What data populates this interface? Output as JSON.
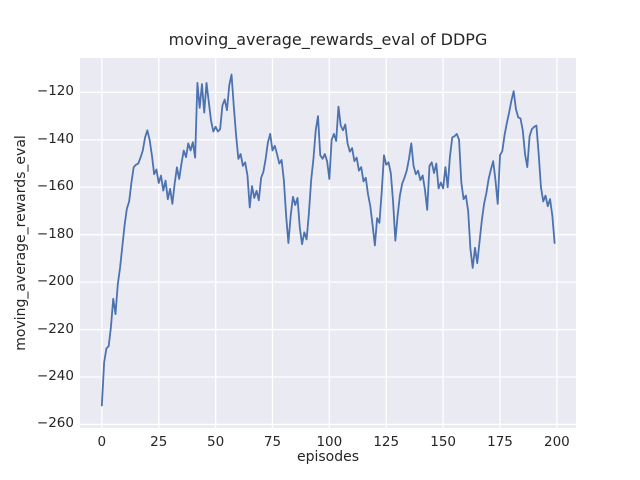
{
  "figure": {
    "title": "moving_average_rewards_eval of DDPG",
    "xlabel": "episodes",
    "ylabel": "moving_average_rewards_eval",
    "background_color": "#ffffff",
    "plot_background_color": "#eaeaf2",
    "grid_color": "#ffffff",
    "text_color": "#262626"
  },
  "chart_data": {
    "type": "line",
    "title": "moving_average_rewards_eval of DDPG",
    "xlabel": "episodes",
    "ylabel": "moving_average_rewards_eval",
    "grid": true,
    "legend": false,
    "x_ticks": [
      0,
      25,
      50,
      75,
      100,
      125,
      150,
      175,
      200
    ],
    "y_ticks": [
      -120,
      -140,
      -160,
      -180,
      -200,
      -220,
      -240,
      -260
    ],
    "xlim": [
      -9.6,
      208.4
    ],
    "ylim": [
      -261.5,
      -105.5
    ],
    "series": [
      {
        "name": "moving_average_rewards_eval",
        "color": "#4c72b0",
        "line_width": 1.8,
        "x_start": 0,
        "x_step": 1,
        "values": [
          -252,
          -234,
          -228,
          -227,
          -219,
          -207,
          -213.5,
          -201,
          -194,
          -185,
          -176,
          -169,
          -166,
          -158,
          -151.5,
          -150.5,
          -150,
          -147.5,
          -144.5,
          -139,
          -136,
          -140,
          -146.5,
          -154.5,
          -152.5,
          -158.2,
          -155.1,
          -161.4,
          -157.2,
          -165,
          -160.7,
          -167,
          -158.5,
          -151.6,
          -156.5,
          -150,
          -144.5,
          -147.3,
          -141.5,
          -144.5,
          -141,
          -147.5,
          -116,
          -126.5,
          -116.5,
          -128.5,
          -116,
          -124,
          -132,
          -136.5,
          -134.5,
          -136.5,
          -135.5,
          -125.5,
          -123,
          -127.5,
          -117,
          -112.5,
          -126,
          -138,
          -148,
          -146,
          -151,
          -149.5,
          -155,
          -168.5,
          -159.5,
          -164.5,
          -161.5,
          -165.5,
          -156,
          -153.5,
          -148,
          -141,
          -137.5,
          -144.5,
          -142.5,
          -146,
          -150,
          -148.5,
          -157,
          -172,
          -183.5,
          -172,
          -164,
          -167.5,
          -164.5,
          -177,
          -184,
          -179,
          -182,
          -171,
          -157,
          -148,
          -136,
          -130,
          -146.5,
          -148,
          -146,
          -149,
          -156.5,
          -140,
          -137.5,
          -140.5,
          -126,
          -134,
          -136,
          -133.5,
          -141.5,
          -145,
          -143.5,
          -149,
          -147.5,
          -153,
          -151.5,
          -157.5,
          -156,
          -163,
          -168,
          -176,
          -184.5,
          -173,
          -175,
          -162,
          -146.5,
          -150.5,
          -149.5,
          -154,
          -166,
          -182.5,
          -172,
          -163.5,
          -158.5,
          -156,
          -153,
          -148,
          -141.5,
          -151,
          -154.5,
          -153,
          -157,
          -155,
          -161,
          -169.5,
          -151,
          -149.5,
          -154,
          -150,
          -160.5,
          -158,
          -160.5,
          -151.5,
          -160,
          -147,
          -139,
          -138.5,
          -137.5,
          -140,
          -158,
          -165,
          -163.5,
          -170,
          -186,
          -194,
          -185.5,
          -192,
          -183,
          -174,
          -167,
          -162.5,
          -156.5,
          -152.5,
          -149,
          -157,
          -167,
          -146.5,
          -144.8,
          -138,
          -133,
          -128.5,
          -123.5,
          -119.5,
          -127,
          -130.5,
          -131,
          -136,
          -146,
          -151.5,
          -138.5,
          -135.5,
          -134.5,
          -134,
          -146,
          -160,
          -166,
          -163.5,
          -168,
          -165,
          -172,
          -183.5
        ]
      }
    ]
  }
}
